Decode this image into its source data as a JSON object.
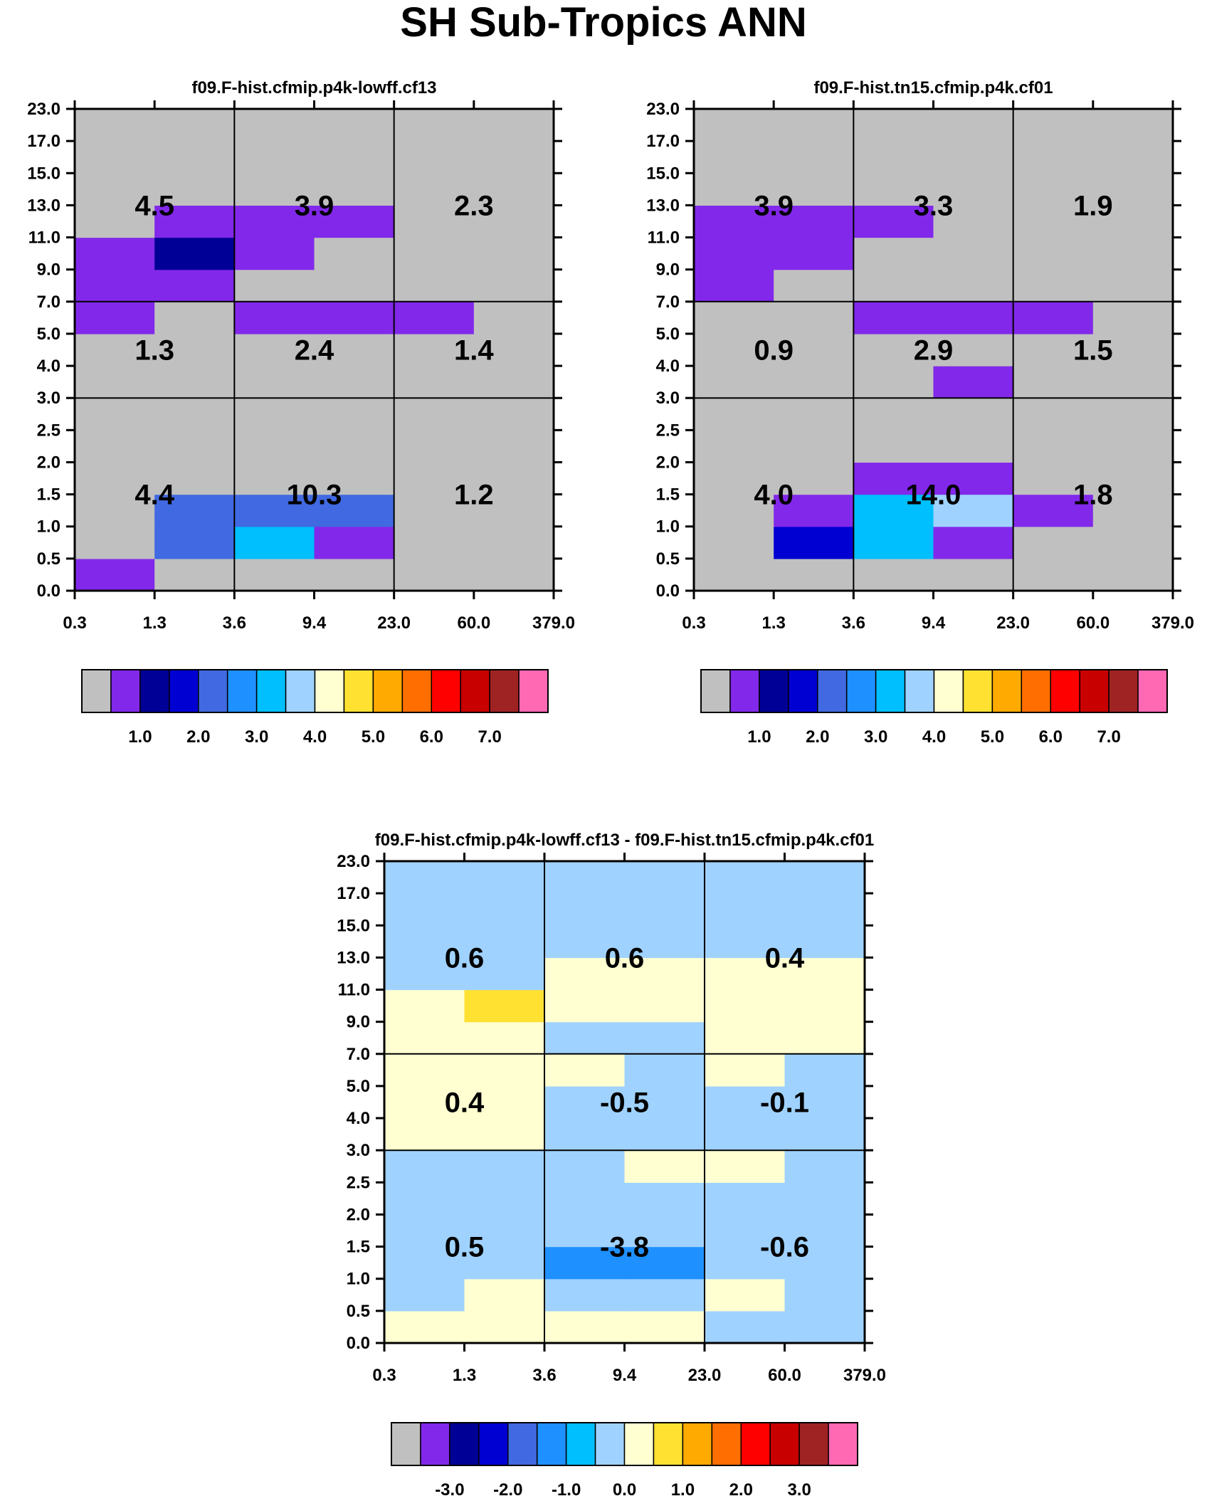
{
  "title": "SH Sub-Tropics ANN",
  "colors": {
    "palette": [
      "#c0c0c0",
      "#8228ea",
      "#000096",
      "#0000d2",
      "#4169e1",
      "#1e90ff",
      "#00bfff",
      "#a0d2ff",
      "#ffffd2",
      "#ffe132",
      "#ffaa00",
      "#ff6e00",
      "#ff0000",
      "#c80000",
      "#a02323",
      "#ff69b4"
    ]
  },
  "chart_data": [
    {
      "type": "heatmap",
      "title": "f09.F-hist.cfmip.p4k-lowff.cf13",
      "xlabel": "",
      "ylabel": "",
      "x_ticks": [
        "0.3",
        "1.3",
        "3.6",
        "9.4",
        "23.0",
        "60.0",
        "379.0"
      ],
      "y_ticks": [
        "0.0",
        "0.5",
        "1.0",
        "1.5",
        "2.0",
        "2.5",
        "3.0",
        "4.0",
        "5.0",
        "7.0",
        "9.0",
        "11.0",
        "13.0",
        "15.0",
        "17.0",
        "23.0"
      ],
      "cell_color_index": [
        [
          1,
          0,
          0,
          0,
          0,
          0
        ],
        [
          0,
          4,
          6,
          1,
          0,
          0
        ],
        [
          0,
          4,
          4,
          4,
          0,
          0
        ],
        [
          0,
          0,
          0,
          0,
          0,
          0
        ],
        [
          0,
          0,
          0,
          0,
          0,
          0
        ],
        [
          0,
          0,
          0,
          0,
          0,
          0
        ],
        [
          0,
          0,
          0,
          0,
          0,
          0
        ],
        [
          0,
          0,
          0,
          0,
          0,
          0
        ],
        [
          1,
          0,
          1,
          1,
          1,
          0
        ],
        [
          1,
          1,
          0,
          0,
          0,
          0
        ],
        [
          1,
          2,
          1,
          0,
          0,
          0
        ],
        [
          0,
          1,
          1,
          1,
          0,
          0
        ],
        [
          0,
          0,
          0,
          0,
          0,
          0
        ],
        [
          0,
          0,
          0,
          0,
          0,
          0
        ],
        [
          0,
          0,
          0,
          0,
          0,
          0
        ]
      ],
      "region_labels": [
        {
          "text": "4.5",
          "col": 0,
          "row": 0
        },
        {
          "text": "3.9",
          "col": 1,
          "row": 0
        },
        {
          "text": "2.3",
          "col": 2,
          "row": 0
        },
        {
          "text": "1.3",
          "col": 0,
          "row": 1
        },
        {
          "text": "2.4",
          "col": 1,
          "row": 1
        },
        {
          "text": "1.4",
          "col": 2,
          "row": 1
        },
        {
          "text": "4.4",
          "col": 0,
          "row": 2
        },
        {
          "text": "10.3",
          "col": 1,
          "row": 2
        },
        {
          "text": "1.2",
          "col": 2,
          "row": 2
        }
      ],
      "colorbar_labels": [
        "1.0",
        "2.0",
        "3.0",
        "4.0",
        "5.0",
        "6.0",
        "7.0"
      ]
    },
    {
      "type": "heatmap",
      "title": "f09.F-hist.tn15.cfmip.p4k.cf01",
      "xlabel": "",
      "ylabel": "",
      "x_ticks": [
        "0.3",
        "1.3",
        "3.6",
        "9.4",
        "23.0",
        "60.0",
        "379.0"
      ],
      "y_ticks": [
        "0.0",
        "0.5",
        "1.0",
        "1.5",
        "2.0",
        "2.5",
        "3.0",
        "4.0",
        "5.0",
        "7.0",
        "9.0",
        "11.0",
        "13.0",
        "15.0",
        "17.0",
        "23.0"
      ],
      "cell_color_index": [
        [
          0,
          0,
          0,
          0,
          0,
          0
        ],
        [
          0,
          3,
          6,
          1,
          0,
          0
        ],
        [
          0,
          1,
          6,
          7,
          1,
          0
        ],
        [
          0,
          0,
          1,
          1,
          0,
          0
        ],
        [
          0,
          0,
          0,
          0,
          0,
          0
        ],
        [
          0,
          0,
          0,
          0,
          0,
          0
        ],
        [
          0,
          0,
          0,
          1,
          0,
          0
        ],
        [
          0,
          0,
          0,
          0,
          0,
          0
        ],
        [
          0,
          0,
          1,
          1,
          1,
          0
        ],
        [
          1,
          0,
          0,
          0,
          0,
          0
        ],
        [
          1,
          1,
          0,
          0,
          0,
          0
        ],
        [
          1,
          1,
          1,
          0,
          0,
          0
        ],
        [
          0,
          0,
          0,
          0,
          0,
          0
        ],
        [
          0,
          0,
          0,
          0,
          0,
          0
        ],
        [
          0,
          0,
          0,
          0,
          0,
          0
        ]
      ],
      "region_labels": [
        {
          "text": "3.9",
          "col": 0,
          "row": 0
        },
        {
          "text": "3.3",
          "col": 1,
          "row": 0
        },
        {
          "text": "1.9",
          "col": 2,
          "row": 0
        },
        {
          "text": "0.9",
          "col": 0,
          "row": 1
        },
        {
          "text": "2.9",
          "col": 1,
          "row": 1
        },
        {
          "text": "1.5",
          "col": 2,
          "row": 1
        },
        {
          "text": "4.0",
          "col": 0,
          "row": 2
        },
        {
          "text": "14.0",
          "col": 1,
          "row": 2
        },
        {
          "text": "1.8",
          "col": 2,
          "row": 2
        }
      ],
      "colorbar_labels": [
        "1.0",
        "2.0",
        "3.0",
        "4.0",
        "5.0",
        "6.0",
        "7.0"
      ]
    },
    {
      "type": "heatmap",
      "title": "f09.F-hist.cfmip.p4k-lowff.cf13 - f09.F-hist.tn15.cfmip.p4k.cf01",
      "xlabel": "",
      "ylabel": "",
      "x_ticks": [
        "0.3",
        "1.3",
        "3.6",
        "9.4",
        "23.0",
        "60.0",
        "379.0"
      ],
      "y_ticks": [
        "0.0",
        "0.5",
        "1.0",
        "1.5",
        "2.0",
        "2.5",
        "3.0",
        "4.0",
        "5.0",
        "7.0",
        "9.0",
        "11.0",
        "13.0",
        "15.0",
        "17.0",
        "23.0"
      ],
      "cell_color_index": [
        [
          8,
          8,
          8,
          8,
          7,
          7
        ],
        [
          7,
          8,
          7,
          7,
          8,
          7
        ],
        [
          7,
          7,
          5,
          5,
          7,
          7
        ],
        [
          7,
          7,
          7,
          7,
          7,
          7
        ],
        [
          7,
          7,
          7,
          7,
          7,
          7
        ],
        [
          7,
          7,
          7,
          8,
          8,
          7
        ],
        [
          8,
          8,
          7,
          7,
          7,
          7
        ],
        [
          8,
          8,
          7,
          7,
          7,
          7
        ],
        [
          8,
          8,
          8,
          7,
          8,
          7
        ],
        [
          8,
          8,
          7,
          7,
          8,
          8
        ],
        [
          8,
          9,
          8,
          8,
          8,
          8
        ],
        [
          7,
          7,
          8,
          8,
          8,
          8
        ],
        [
          7,
          7,
          7,
          7,
          7,
          7
        ],
        [
          7,
          7,
          7,
          7,
          7,
          7
        ],
        [
          7,
          7,
          7,
          7,
          7,
          7
        ]
      ],
      "region_labels": [
        {
          "text": "0.6",
          "col": 0,
          "row": 0
        },
        {
          "text": "0.6",
          "col": 1,
          "row": 0
        },
        {
          "text": "0.4",
          "col": 2,
          "row": 0
        },
        {
          "text": "0.4",
          "col": 0,
          "row": 1
        },
        {
          "text": "-0.5",
          "col": 1,
          "row": 1
        },
        {
          "text": "-0.1",
          "col": 2,
          "row": 1
        },
        {
          "text": "0.5",
          "col": 0,
          "row": 2
        },
        {
          "text": "-3.8",
          "col": 1,
          "row": 2
        },
        {
          "text": "-0.6",
          "col": 2,
          "row": 2
        }
      ],
      "colorbar_labels": [
        "-3.0",
        "-2.0",
        "-1.0",
        "0.0",
        "1.0",
        "2.0",
        "3.0"
      ]
    }
  ]
}
